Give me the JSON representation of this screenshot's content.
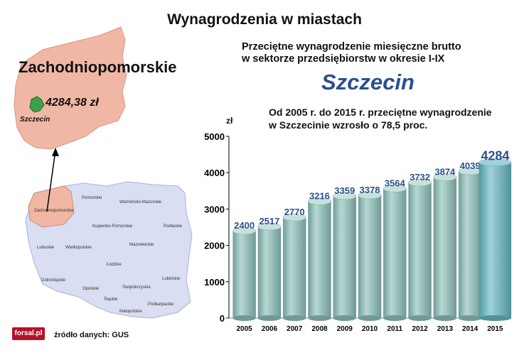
{
  "header": {
    "title": "Wynagrodzenia w miastach"
  },
  "subtitle_lines": [
    "Przeciętne wynagrodzenie miesięczne brutto",
    "w sektorze przedsiębiorstw w okresie I-IX"
  ],
  "city": "Szczecin",
  "note_lines": [
    "Od 2005 r. do 2015 r. przeciętne wynagrodzenie",
    "w Szczecinie wzrosło o 78,5 proc."
  ],
  "map": {
    "region": "Zachodniopomorskie",
    "wage": "4284,38 zł",
    "city_marker": "Szczecin",
    "voivodeships": [
      "Pomorskie",
      "Warmińsko-Mazurskie",
      "Zachodniopomorskie",
      "Kujawsko-Pomorskie",
      "Podlaskie",
      "Lubuskie",
      "Wielkopolskie",
      "Mazowieckie",
      "Łódzkie",
      "Dolnośląskie",
      "Lubelskie",
      "Opolskie",
      "Świętokrzyskie",
      "Śląskie",
      "Podkarpackie",
      "Małopolskie"
    ]
  },
  "footer": {
    "source": "źródło danych: GUS",
    "logo": "forsal.pl"
  },
  "colors": {
    "bar": "#8fbdb6",
    "bar_highlight": "#6fb3b8",
    "label": "#2b4f8c",
    "map_region": "#f0b8a4",
    "map_country": "#d9def2"
  },
  "chart_data": {
    "type": "bar",
    "title": "",
    "ylabel": "zł",
    "xlabel": "",
    "categories": [
      "2005",
      "2006",
      "2007",
      "2008",
      "2009",
      "2010",
      "2011",
      "2012",
      "2013",
      "2014",
      "2015"
    ],
    "values": [
      2400,
      2517,
      2770,
      3216,
      3359,
      3378,
      3564,
      3732,
      3874,
      4039,
      4284
    ],
    "ylim": [
      0,
      5000
    ],
    "yticks": [
      0,
      1000,
      2000,
      3000,
      4000,
      5000
    ],
    "grid": false,
    "legend": "none"
  }
}
